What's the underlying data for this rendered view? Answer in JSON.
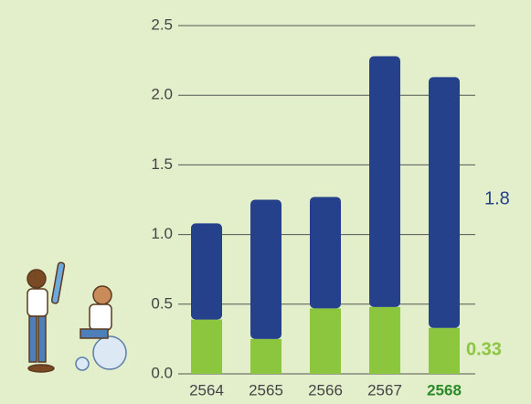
{
  "chart_data": {
    "type": "stacked_bar",
    "categories": [
      "2564",
      "2565",
      "2566",
      "2567",
      "2568"
    ],
    "series": [
      {
        "color": "#8cc63f",
        "values": [
          0.39,
          0.25,
          0.47,
          0.48,
          0.33
        ]
      },
      {
        "color": "#26418c",
        "values": [
          0.69,
          1.0,
          0.8,
          1.8,
          1.8
        ]
      }
    ],
    "ylim": [
      0,
      2.5
    ],
    "yticks": [
      {
        "value": 0,
        "label": "0.0"
      },
      0.5,
      {
        "value": 1,
        "label": "1.0"
      },
      1.5,
      {
        "value": 2,
        "label": "2.0"
      },
      2.5
    ],
    "grid": true
  }
}
